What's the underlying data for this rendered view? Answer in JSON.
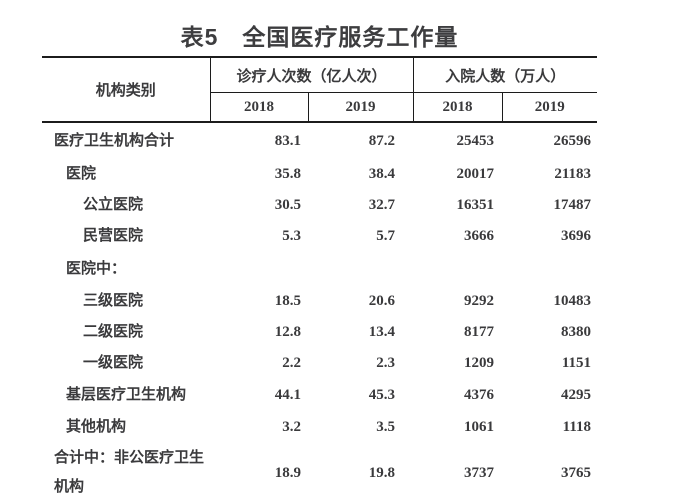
{
  "table": {
    "title": "表5　全国医疗服务工作量",
    "header": {
      "org_col": "机构类别",
      "groups": [
        {
          "label": "诊疗人次数（亿人次）",
          "years": [
            "2018",
            "2019"
          ]
        },
        {
          "label": "入院人数（万人）",
          "years": [
            "2018",
            "2019"
          ]
        }
      ]
    },
    "rows": [
      {
        "label": "医疗卫生机构合计",
        "indent": 0,
        "values": [
          "83.1",
          "87.2",
          "25453",
          "26596"
        ]
      },
      {
        "label": "医院",
        "indent": 1,
        "values": [
          "35.8",
          "38.4",
          "20017",
          "21183"
        ]
      },
      {
        "label": "公立医院",
        "indent": 2,
        "values": [
          "30.5",
          "32.7",
          "16351",
          "17487"
        ]
      },
      {
        "label": "民营医院",
        "indent": 2,
        "values": [
          "5.3",
          "5.7",
          "3666",
          "3696"
        ]
      },
      {
        "label": "医院中：",
        "indent": 1,
        "values": [
          "",
          "",
          "",
          ""
        ]
      },
      {
        "label": "三级医院",
        "indent": 2,
        "values": [
          "18.5",
          "20.6",
          "9292",
          "10483"
        ]
      },
      {
        "label": "二级医院",
        "indent": 2,
        "values": [
          "12.8",
          "13.4",
          "8177",
          "8380"
        ]
      },
      {
        "label": "一级医院",
        "indent": 2,
        "values": [
          "2.2",
          "2.3",
          "1209",
          "1151"
        ]
      },
      {
        "label": "基层医疗卫生机构",
        "indent": 1,
        "values": [
          "44.1",
          "45.3",
          "4376",
          "4295"
        ]
      },
      {
        "label": "其他机构",
        "indent": 1,
        "values": [
          "3.2",
          "3.5",
          "1061",
          "1118"
        ]
      },
      {
        "label": "合计中：非公医疗卫生机构",
        "indent": 0,
        "values": [
          "18.9",
          "19.8",
          "3737",
          "3765"
        ]
      }
    ]
  },
  "chart_data": {
    "type": "table",
    "title": "表5　全国医疗服务工作量",
    "categories": [
      "医疗卫生机构合计",
      "医院",
      "公立医院",
      "民营医院",
      "三级医院",
      "二级医院",
      "一级医院",
      "基层医疗卫生机构",
      "其他机构",
      "合计中：非公医疗卫生机构"
    ],
    "series": [
      {
        "name": "诊疗人次数（亿人次）2018",
        "values": [
          83.1,
          35.8,
          30.5,
          5.3,
          18.5,
          12.8,
          2.2,
          44.1,
          3.2,
          18.9
        ]
      },
      {
        "name": "诊疗人次数（亿人次）2019",
        "values": [
          87.2,
          38.4,
          32.7,
          5.7,
          20.6,
          13.4,
          2.3,
          45.3,
          3.5,
          19.8
        ]
      },
      {
        "name": "入院人数（万人）2018",
        "values": [
          25453,
          20017,
          16351,
          3666,
          9292,
          8177,
          1209,
          4376,
          1061,
          3737
        ]
      },
      {
        "name": "入院人数（万人）2019",
        "values": [
          26596,
          21183,
          17487,
          3696,
          10483,
          8380,
          1151,
          4295,
          1118,
          3765
        ]
      }
    ]
  },
  "colors": {
    "text": "#3a3a3c",
    "line": "#1c1c1c",
    "background": "#ffffff"
  }
}
